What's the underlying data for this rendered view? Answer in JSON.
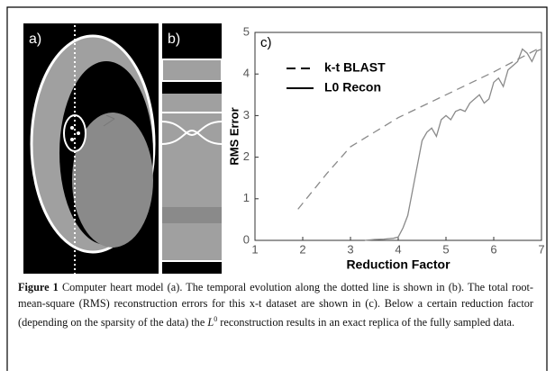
{
  "panels": [
    {
      "label": "a)"
    },
    {
      "label": "b)"
    }
  ],
  "chart_data": {
    "type": "line",
    "panel_label": "c)",
    "xlabel": "Reduction Factor",
    "ylabel": "RMS Error",
    "xlim": [
      1,
      7
    ],
    "ylim": [
      0,
      5
    ],
    "xticks": [
      1,
      2,
      3,
      4,
      5,
      6,
      7
    ],
    "yticks": [
      0,
      1,
      2,
      3,
      4,
      5
    ],
    "grid": false,
    "legend": "upper left",
    "series": [
      {
        "name": "k-t BLAST",
        "color": "#8a8a8a",
        "style": "dashed",
        "x": [
          1.9,
          2.5,
          3,
          3.5,
          4,
          5,
          6,
          6.5,
          7
        ],
        "values": [
          0.75,
          1.6,
          2.25,
          2.6,
          2.95,
          3.5,
          4.05,
          4.35,
          4.65
        ]
      },
      {
        "name": "L0 Recon",
        "color": "#8a8a8a",
        "style": "solid",
        "x": [
          3.3,
          3.5,
          3.7,
          3.9,
          4.0,
          4.1,
          4.2,
          4.3,
          4.4,
          4.5,
          4.6,
          4.7,
          4.8,
          4.9,
          5.0,
          5.1,
          5.2,
          5.3,
          5.4,
          5.5,
          5.6,
          5.7,
          5.8,
          5.9,
          6.0,
          6.1,
          6.2,
          6.3,
          6.4,
          6.5,
          6.6,
          6.7,
          6.8,
          6.9,
          7.0
        ],
        "values": [
          0,
          0.02,
          0.03,
          0.05,
          0.08,
          0.3,
          0.6,
          1.2,
          1.8,
          2.4,
          2.6,
          2.7,
          2.5,
          2.9,
          3.0,
          2.9,
          3.1,
          3.15,
          3.1,
          3.3,
          3.4,
          3.5,
          3.3,
          3.4,
          3.8,
          3.9,
          3.7,
          4.1,
          4.2,
          4.3,
          4.6,
          4.5,
          4.3,
          4.55,
          4.6
        ]
      }
    ]
  },
  "caption": {
    "label": "Figure 1",
    "parts": [
      "Computer heart model (a). The temporal evolution along the dotted line is shown in (b). The total root-mean-square (RMS) reconstruction errors for this x-t dataset are shown in (c). Below a certain reduction factor (depending on the sparsity of the data) the ",
      "L",
      "0",
      " reconstruction results in an exact replica of the fully sampled data."
    ]
  }
}
